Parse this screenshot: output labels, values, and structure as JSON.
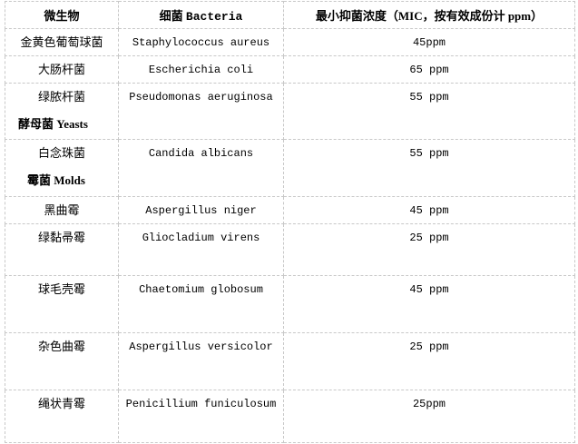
{
  "header": {
    "col1": "微生物",
    "col2_cn": "细菌",
    "col2_en": "Bacteria",
    "col3": "最小抑菌浓度（MIC，按有效成份计 ppm）"
  },
  "rows": [
    {
      "cn": "金黄色葡萄球菌",
      "latin": "Staphylococcus aureus",
      "mic": "45ppm"
    },
    {
      "cn": "大肠杆菌",
      "latin": "Escherichia coli",
      "mic": "65 ppm"
    },
    {
      "cn": "绿脓杆菌",
      "latin": "Pseudomonas aeruginosa",
      "mic": "55 ppm",
      "subheading": "酵母菌 Yeasts"
    },
    {
      "cn": "白念珠菌",
      "latin": "Candida albicans",
      "mic": "55 ppm",
      "subheading": "霉菌 Molds"
    },
    {
      "cn": "黑曲霉",
      "latin": "Aspergillus niger",
      "mic": "45 ppm"
    },
    {
      "cn": "绿黏帚霉",
      "latin": "Gliocladium virens",
      "mic": "25 ppm"
    },
    {
      "cn": "球毛壳霉",
      "latin": "Chaetomium globosum",
      "mic": "45 ppm"
    },
    {
      "cn": "杂色曲霉",
      "latin": "Aspergillus versicolor",
      "mic": "25 ppm"
    },
    {
      "cn": "绳状青霉",
      "latin": "Penicillium funiculosum",
      "mic": "25ppm"
    }
  ]
}
